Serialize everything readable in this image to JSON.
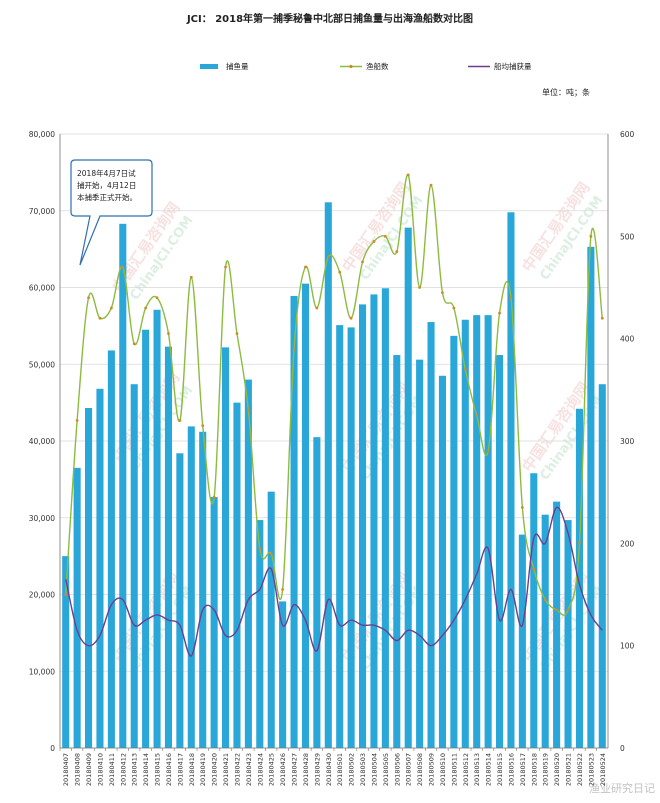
{
  "chart_data": {
    "type": "bar",
    "title": "JCI： 2018年第一捕季秘鲁中北部日捕鱼量与出海渔船数对比图",
    "unit_note": "单位：吨；条",
    "callout": [
      "2018年4月7日试",
      "捕开始，4月12日",
      "本捕季正式开始。"
    ],
    "legend": [
      {
        "name": "捕鱼量",
        "color": "#2aa7d9",
        "kind": "bar"
      },
      {
        "name": "渔船数",
        "color": "#8cbc3f",
        "kind": "line"
      },
      {
        "name": "船均捕获量",
        "color": "#6b3f8f",
        "kind": "line"
      }
    ],
    "categories": [
      "20180407",
      "20180408",
      "20180409",
      "20180410",
      "20180411",
      "20180412",
      "20180413",
      "20180414",
      "20180415",
      "20180416",
      "20180417",
      "20180418",
      "20180419",
      "20180420",
      "20180421",
      "20180422",
      "20180423",
      "20180424",
      "20180425",
      "20180426",
      "20180427",
      "20180428",
      "20180429",
      "20180430",
      "20180501",
      "20180502",
      "20180503",
      "20180504",
      "20180505",
      "20180506",
      "20180507",
      "20180508",
      "20180509",
      "20180510",
      "20180511",
      "20180512",
      "20180513",
      "20180514",
      "20180515",
      "20180516",
      "20180517",
      "20180518",
      "20180519",
      "20180520",
      "20180521",
      "20180522",
      "20180523",
      "20180524"
    ],
    "series": [
      {
        "name": "捕鱼量",
        "axis": "left",
        "values": [
          25000,
          36500,
          44300,
          46800,
          51800,
          68300,
          47400,
          54500,
          57100,
          52300,
          38400,
          41900,
          41200,
          32700,
          52200,
          45000,
          48000,
          29700,
          33400,
          19100,
          58900,
          60500,
          40500,
          71100,
          55100,
          54800,
          57800,
          59100,
          59900,
          51200,
          67800,
          50600,
          55500,
          48500,
          53700,
          55800,
          56400,
          56400,
          51200,
          69800,
          27800,
          35800,
          30400,
          32100,
          29700,
          44200,
          65300,
          47400
        ]
      },
      {
        "name": "渔船数",
        "axis": "right",
        "values": [
          150,
          320,
          440,
          420,
          430,
          470,
          395,
          430,
          440,
          405,
          320,
          460,
          315,
          245,
          470,
          405,
          330,
          195,
          190,
          155,
          390,
          470,
          430,
          480,
          465,
          420,
          475,
          495,
          500,
          485,
          560,
          450,
          550,
          445,
          430,
          370,
          325,
          290,
          425,
          440,
          235,
          175,
          145,
          135,
          135,
          200,
          500,
          420
        ]
      },
      {
        "name": "船均捕获量",
        "axis": "right",
        "values": [
          165,
          115,
          100,
          110,
          140,
          145,
          120,
          125,
          130,
          125,
          120,
          90,
          135,
          135,
          110,
          115,
          145,
          155,
          175,
          120,
          140,
          125,
          95,
          145,
          120,
          125,
          120,
          120,
          115,
          105,
          115,
          110,
          100,
          110,
          125,
          145,
          170,
          195,
          125,
          155,
          120,
          205,
          200,
          235,
          210,
          160,
          130,
          115
        ]
      }
    ],
    "y_left": {
      "min": 0,
      "max": 80000,
      "ticks": [
        "0",
        "10,000",
        "20,000",
        "30,000",
        "40,000",
        "50,000",
        "60,000",
        "70,000",
        "80,000"
      ]
    },
    "y_right": {
      "min": 0,
      "max": 600,
      "ticks": [
        "0",
        "100",
        "200",
        "300",
        "400",
        "500",
        "600"
      ]
    },
    "watermarks": [
      "中国汇易咨询网",
      "ChinaJCI.COM",
      "渔业研究日记"
    ]
  }
}
